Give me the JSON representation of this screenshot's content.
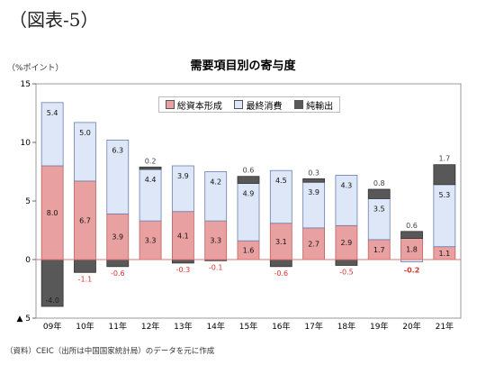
{
  "figure_label": "（図表-5）",
  "unit_label": "（%ポイント）",
  "source_note": "（資料）CEIC（出所は中国国家統計局）のデータを元に作成",
  "colors": {
    "capital": "#e8a0a0",
    "consumption": "#dde7f7",
    "net_exports": "#585858",
    "capital_stroke": "#c06060",
    "consumption_stroke": "#6a7fb0",
    "zero_line": "#e07070",
    "negative_label": "#e03030"
  },
  "chart_data": {
    "type": "bar",
    "stacked": true,
    "title": "需要項目別の寄与度",
    "categories": [
      "09年",
      "10年",
      "11年",
      "12年",
      "13年",
      "14年",
      "15年",
      "16年",
      "17年",
      "18年",
      "19年",
      "20年",
      "21年"
    ],
    "series": [
      {
        "name": "総資本形成",
        "values": [
          8.0,
          6.7,
          3.9,
          3.3,
          4.1,
          3.3,
          1.6,
          3.1,
          2.7,
          2.9,
          1.7,
          1.8,
          1.1
        ]
      },
      {
        "name": "最終消費",
        "values": [
          5.4,
          5.0,
          6.3,
          4.4,
          3.9,
          4.2,
          4.9,
          4.5,
          3.9,
          4.3,
          3.5,
          -0.2,
          5.3
        ]
      },
      {
        "name": "純輸出",
        "values": [
          -4.0,
          -1.1,
          -0.6,
          0.2,
          -0.3,
          -0.1,
          0.6,
          -0.6,
          0.3,
          -0.5,
          0.8,
          0.6,
          1.7
        ]
      }
    ],
    "labels": {
      "capital": [
        "8.0",
        "6.7",
        "3.9",
        "3.3",
        "4.1",
        "3.3",
        "1.6",
        "3.1",
        "2.7",
        "2.9",
        "1.7",
        "1.8",
        "1.1"
      ],
      "consumption": [
        "5.4",
        "5.0",
        "6.3",
        "4.4",
        "3.9",
        "4.2",
        "4.9",
        "4.5",
        "3.9",
        "4.3",
        "3.5",
        "-0.2",
        "5.3"
      ],
      "net_exports": [
        "-4.0",
        "-1.1",
        "-0.6",
        "0.2",
        "-0.3",
        "-0.1",
        "0.6",
        "-0.6",
        "0.3",
        "-0.5",
        "0.8",
        "0.6",
        "1.7"
      ]
    },
    "ylim": [
      -5,
      15
    ],
    "yticks": [
      -5,
      0,
      5,
      10,
      15
    ],
    "ytick_labels": [
      "▲ 5",
      "0",
      "5",
      "10",
      "15"
    ],
    "legend_position": "top"
  }
}
